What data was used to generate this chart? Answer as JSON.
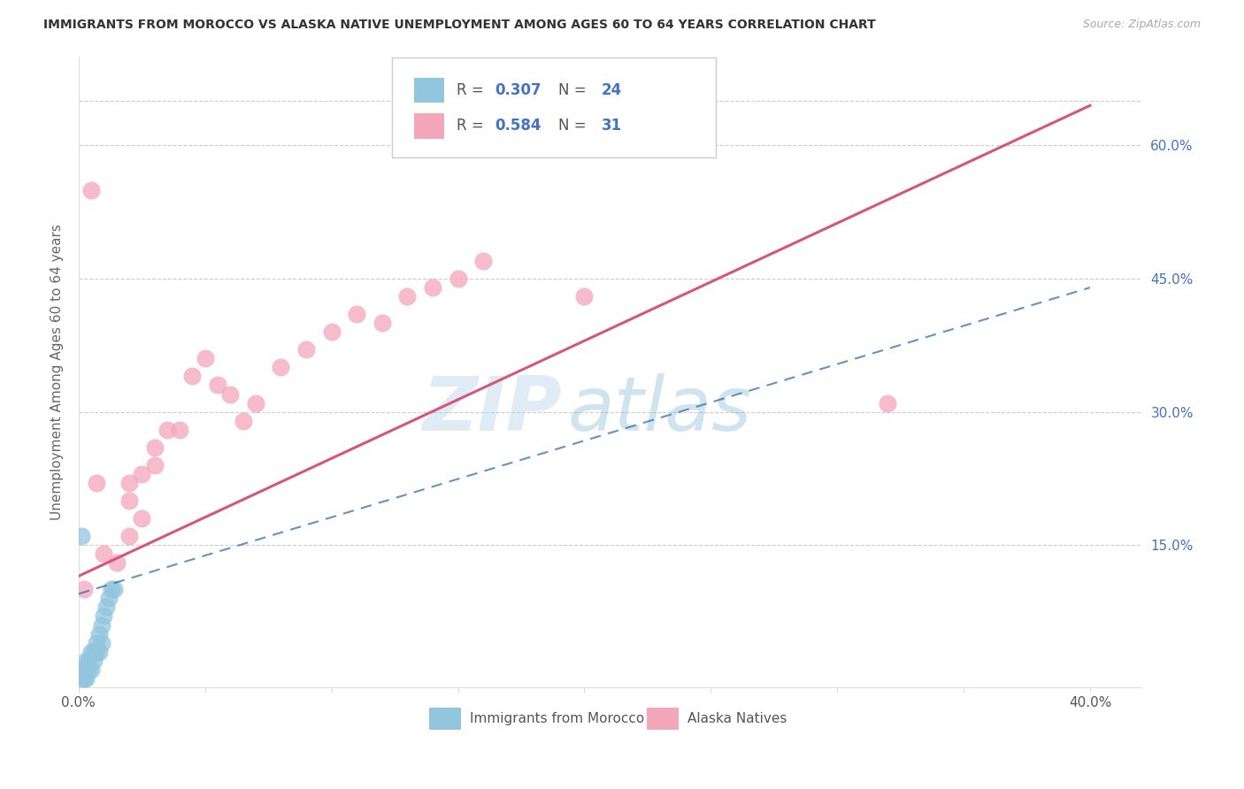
{
  "title": "IMMIGRANTS FROM MOROCCO VS ALASKA NATIVE UNEMPLOYMENT AMONG AGES 60 TO 64 YEARS CORRELATION CHART",
  "source": "Source: ZipAtlas.com",
  "ylabel": "Unemployment Among Ages 60 to 64 years",
  "xlim": [
    0.0,
    0.42
  ],
  "ylim": [
    -0.01,
    0.7
  ],
  "right_yticks": [
    0.15,
    0.3,
    0.45,
    0.6
  ],
  "right_yticklabels": [
    "15.0%",
    "30.0%",
    "45.0%",
    "60.0%"
  ],
  "legend_blue_r": "0.307",
  "legend_blue_n": "24",
  "legend_pink_r": "0.584",
  "legend_pink_n": "31",
  "blue_color": "#92c5de",
  "pink_color": "#f4a6bb",
  "blue_line_color": "#2166ac",
  "pink_line_color": "#d6567a",
  "watermark_zip": "ZIP",
  "watermark_atlas": "atlas",
  "blue_points_x": [
    0.001,
    0.001,
    0.002,
    0.002,
    0.003,
    0.003,
    0.004,
    0.004,
    0.005,
    0.005,
    0.006,
    0.006,
    0.007,
    0.007,
    0.008,
    0.008,
    0.009,
    0.009,
    0.01,
    0.011,
    0.012,
    0.013,
    0.014,
    0.001
  ],
  "blue_points_y": [
    0.0,
    0.01,
    0.0,
    0.01,
    0.0,
    0.02,
    0.01,
    0.02,
    0.01,
    0.03,
    0.02,
    0.03,
    0.03,
    0.04,
    0.03,
    0.05,
    0.04,
    0.06,
    0.07,
    0.08,
    0.09,
    0.1,
    0.1,
    0.16
  ],
  "pink_points_x": [
    0.01,
    0.015,
    0.02,
    0.02,
    0.025,
    0.03,
    0.035,
    0.04,
    0.045,
    0.05,
    0.055,
    0.06,
    0.065,
    0.07,
    0.08,
    0.09,
    0.1,
    0.11,
    0.12,
    0.13,
    0.14,
    0.15,
    0.02,
    0.025,
    0.03,
    0.16,
    0.2,
    0.32,
    0.005,
    0.007,
    0.002
  ],
  "pink_points_y": [
    0.14,
    0.13,
    0.2,
    0.22,
    0.23,
    0.24,
    0.28,
    0.28,
    0.34,
    0.36,
    0.33,
    0.32,
    0.29,
    0.31,
    0.35,
    0.37,
    0.39,
    0.41,
    0.4,
    0.43,
    0.44,
    0.45,
    0.16,
    0.18,
    0.26,
    0.47,
    0.43,
    0.31,
    0.55,
    0.22,
    0.1
  ],
  "blue_trend_x": [
    0.0,
    0.4
  ],
  "blue_trend_y": [
    0.095,
    0.44
  ],
  "pink_trend_x": [
    0.0,
    0.4
  ],
  "pink_trend_y": [
    0.115,
    0.645
  ]
}
